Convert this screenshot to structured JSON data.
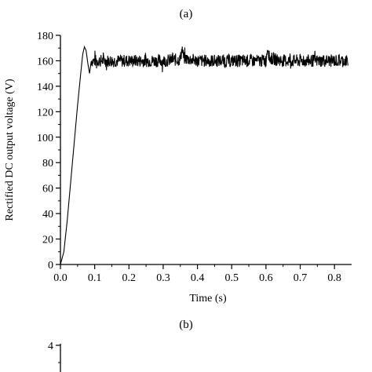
{
  "chart_data": [
    {
      "panel_label": "(a)",
      "type": "line",
      "title": "",
      "xlabel": "Time (s)",
      "ylabel": "Rectified DC output voltage (V)",
      "xlim": [
        0.0,
        0.85
      ],
      "ylim": [
        0,
        180
      ],
      "x_ticks": [
        "0.0",
        "0.1",
        "0.2",
        "0.3",
        "0.4",
        "0.5",
        "0.6",
        "0.7",
        "0.8"
      ],
      "x_tick_values": [
        0.0,
        0.1,
        0.2,
        0.3,
        0.4,
        0.5,
        0.6,
        0.7,
        0.8
      ],
      "y_ticks": [
        "0",
        "20",
        "40",
        "60",
        "80",
        "100",
        "120",
        "140",
        "160",
        "180"
      ],
      "y_tick_values": [
        0,
        20,
        40,
        60,
        80,
        100,
        120,
        140,
        160,
        180
      ],
      "grid": false,
      "legend": "none",
      "series": [
        {
          "x": [
            0.0,
            0.01,
            0.02,
            0.03,
            0.04,
            0.05,
            0.06,
            0.065,
            0.07,
            0.075,
            0.08,
            0.085,
            0.09,
            0.1,
            0.12,
            0.15,
            0.2,
            0.25,
            0.3,
            0.35,
            0.355,
            0.36,
            0.4,
            0.45,
            0.5,
            0.55,
            0.6,
            0.605,
            0.61,
            0.65,
            0.7,
            0.75,
            0.8,
            0.84
          ],
          "y": [
            0,
            10,
            35,
            65,
            95,
            125,
            152,
            165,
            171,
            168,
            158,
            150,
            160,
            160,
            160,
            160,
            160,
            160,
            160,
            161,
            170,
            162,
            160,
            160,
            160,
            160,
            160,
            172,
            162,
            160,
            160,
            160,
            160,
            160
          ],
          "noise_amplitude_after_settling": 5
        }
      ]
    },
    {
      "panel_label": "(b)",
      "type": "line",
      "y_ticks": [
        "4"
      ],
      "y_tick_values": [
        4
      ]
    }
  ]
}
